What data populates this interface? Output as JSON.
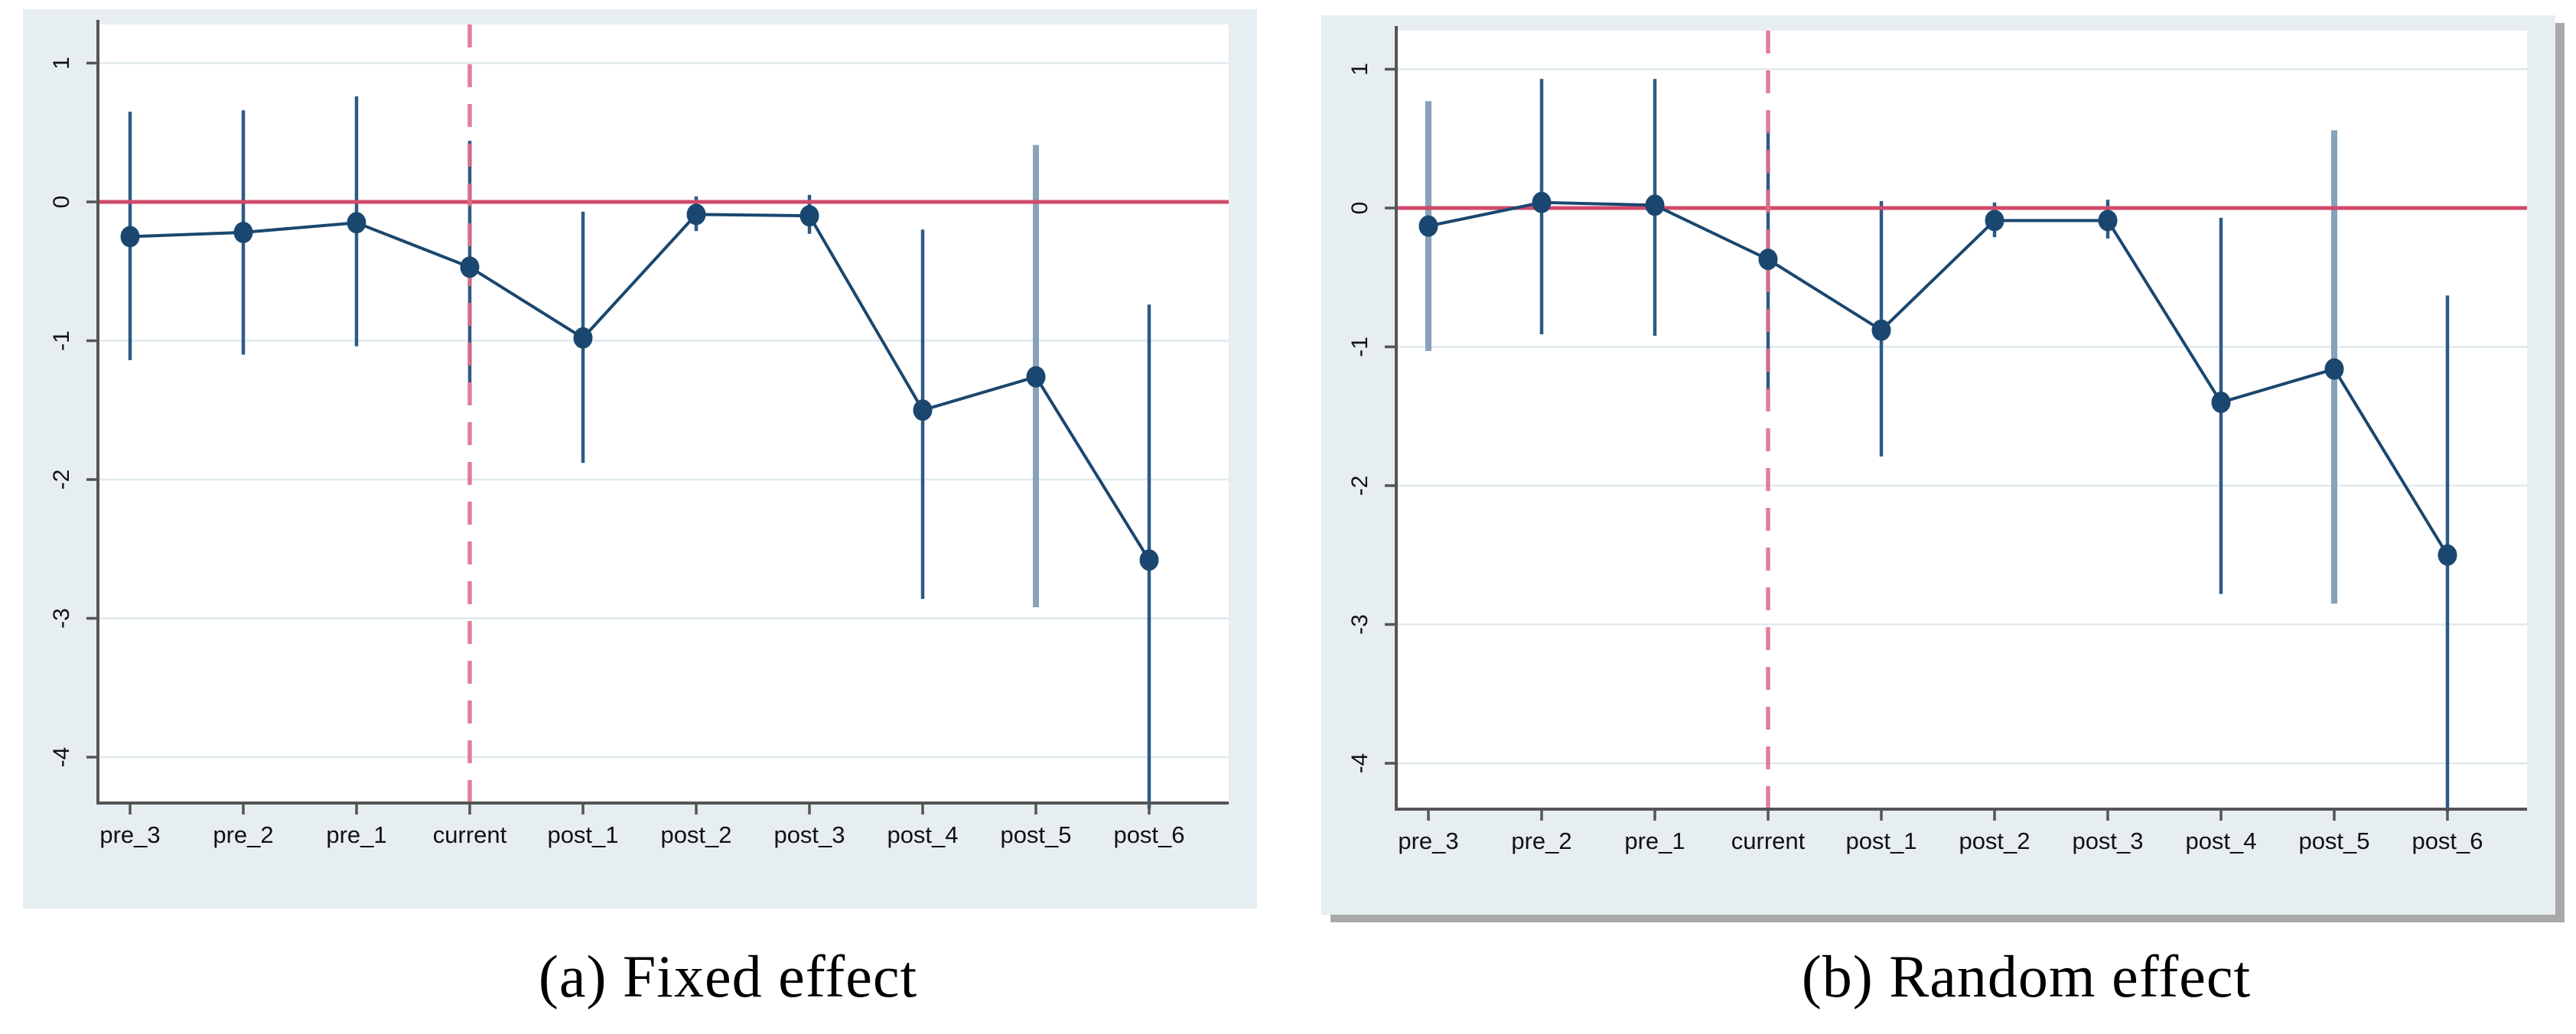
{
  "figure": {
    "panels": [
      {
        "caption": "(a) Fixed effect"
      },
      {
        "caption": "(b) Random effect"
      }
    ]
  },
  "chart_data": [
    {
      "type": "line",
      "title": "(a) Fixed effect",
      "xlabel": "",
      "ylabel": "",
      "categories": [
        "pre_3",
        "pre_2",
        "pre_1",
        "current",
        "post_1",
        "post_2",
        "post_3",
        "post_4",
        "post_5",
        "post_6"
      ],
      "series": [
        {
          "name": "coefficient",
          "values": [
            -0.25,
            -0.22,
            -0.15,
            -0.47,
            -0.98,
            -0.09,
            -0.1,
            -1.5,
            -1.26,
            -2.58
          ],
          "ci_low": [
            -1.14,
            -1.1,
            -1.04,
            -1.3,
            -1.88,
            -0.21,
            -0.23,
            -2.86,
            -2.92,
            -4.37
          ],
          "ci_high": [
            0.65,
            0.66,
            0.76,
            0.44,
            -0.07,
            0.04,
            0.05,
            -0.2,
            0.41,
            -0.74
          ],
          "ci_light": [
            false,
            false,
            false,
            false,
            false,
            false,
            false,
            false,
            true,
            false
          ]
        }
      ],
      "yticks": [
        1,
        0,
        -1,
        -2,
        -3,
        -4
      ],
      "ylim": [
        -4.33,
        1.28
      ],
      "refline_y": 0,
      "refline_x_category": "current",
      "grid": true,
      "legend": "none"
    },
    {
      "type": "line",
      "title": "(b) Random effect",
      "xlabel": "",
      "ylabel": "",
      "categories": [
        "pre_3",
        "pre_2",
        "pre_1",
        "current",
        "post_1",
        "post_2",
        "post_3",
        "post_4",
        "post_5",
        "post_6"
      ],
      "series": [
        {
          "name": "coefficient",
          "values": [
            -0.13,
            0.04,
            0.02,
            -0.37,
            -0.88,
            -0.09,
            -0.09,
            -1.4,
            -1.16,
            -2.5
          ],
          "ci_low": [
            -1.03,
            -0.91,
            -0.92,
            -1.31,
            -1.79,
            -0.21,
            -0.22,
            -2.78,
            -2.85,
            -4.35
          ],
          "ci_high": [
            0.77,
            0.93,
            0.93,
            0.56,
            0.05,
            0.04,
            0.06,
            -0.07,
            0.56,
            -0.63
          ],
          "ci_light": [
            true,
            false,
            false,
            false,
            false,
            false,
            false,
            false,
            true,
            false
          ]
        }
      ],
      "yticks": [
        1,
        0,
        -1,
        -2,
        -3,
        -4
      ],
      "ylim": [
        -4.33,
        1.28
      ],
      "refline_y": 0,
      "refline_x_category": "current",
      "grid": true,
      "legend": "none"
    }
  ],
  "colors": {
    "navy": "#1a476f",
    "spike": "#2e5a85",
    "spike_light": "#87a2ba",
    "ref_red": "#d1496b",
    "ref_red_dashed": "#e0718c",
    "panel_bg": "#e7eef1",
    "plot_bg": "#ffffff",
    "gridline": "#dfe9ed",
    "axis": "#555555",
    "tick_label": "#111111"
  }
}
